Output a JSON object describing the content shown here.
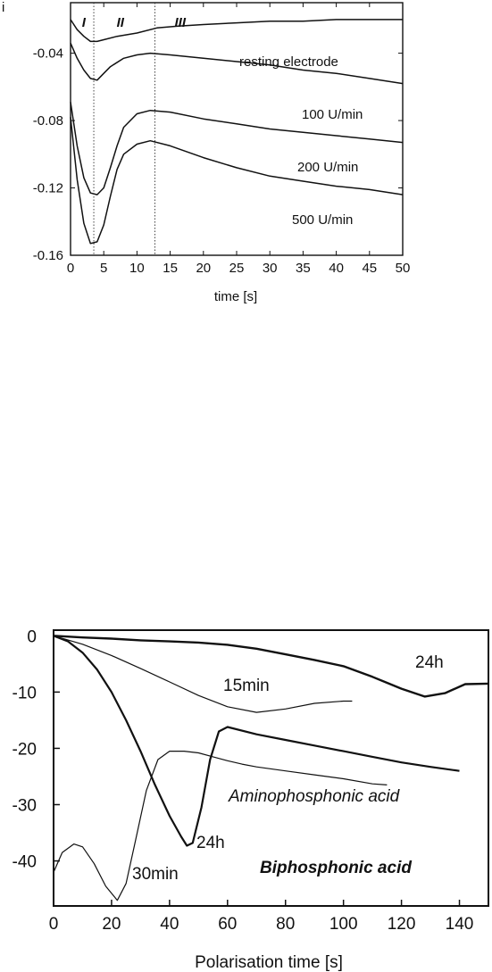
{
  "chart_data": [
    {
      "type": "line",
      "title": "",
      "ylabel": "i",
      "xlabel": "time [s]",
      "xlim": [
        0,
        50
      ],
      "ylim": [
        -0.16,
        -0.01
      ],
      "xticks": [
        "0",
        "5",
        "10",
        "15",
        "20",
        "25",
        "30",
        "35",
        "40",
        "45",
        "50"
      ],
      "yticks": [
        "-0.04",
        "-0.08",
        "-0.12",
        "-0.16"
      ],
      "regions": [
        {
          "label": "I",
          "x": 2
        },
        {
          "label": "II",
          "x": 7.5
        },
        {
          "label": "III",
          "x": 16.5
        }
      ],
      "region_boundaries": [
        3.5,
        12.7
      ],
      "series": [
        {
          "name": "resting electrode",
          "x": [
            0,
            1,
            2,
            3,
            4,
            5,
            7,
            10,
            13,
            16,
            20,
            25,
            30,
            35,
            40,
            45,
            50
          ],
          "y": [
            -0.02,
            -0.026,
            -0.03,
            -0.033,
            -0.033,
            -0.032,
            -0.03,
            -0.028,
            -0.025,
            -0.024,
            -0.023,
            -0.022,
            -0.021,
            -0.021,
            -0.02,
            -0.02,
            -0.02
          ]
        },
        {
          "name": "100 U/min",
          "x": [
            0,
            1,
            2,
            3,
            4,
            5,
            6,
            8,
            10,
            12,
            15,
            20,
            25,
            30,
            35,
            40,
            45,
            50
          ],
          "y": [
            -0.034,
            -0.043,
            -0.05,
            -0.055,
            -0.056,
            -0.052,
            -0.048,
            -0.043,
            -0.041,
            -0.04,
            -0.041,
            -0.043,
            -0.045,
            -0.047,
            -0.05,
            -0.052,
            -0.055,
            -0.058
          ]
        },
        {
          "name": "200 U/min",
          "x": [
            0,
            1,
            2,
            3,
            4,
            5,
            6,
            7,
            8,
            10,
            12,
            15,
            20,
            25,
            30,
            35,
            40,
            45,
            50
          ],
          "y": [
            -0.069,
            -0.095,
            -0.114,
            -0.123,
            -0.124,
            -0.12,
            -0.108,
            -0.095,
            -0.084,
            -0.076,
            -0.074,
            -0.075,
            -0.079,
            -0.082,
            -0.085,
            -0.087,
            -0.089,
            -0.091,
            -0.093
          ]
        },
        {
          "name": "500 U/min",
          "x": [
            0,
            1,
            2,
            3,
            4,
            5,
            6,
            7,
            8,
            10,
            12,
            15,
            20,
            25,
            30,
            35,
            40,
            45,
            50
          ],
          "y": [
            -0.078,
            -0.115,
            -0.141,
            -0.153,
            -0.152,
            -0.142,
            -0.125,
            -0.109,
            -0.1,
            -0.094,
            -0.092,
            -0.095,
            -0.102,
            -0.108,
            -0.113,
            -0.116,
            -0.119,
            -0.121,
            -0.124
          ]
        }
      ]
    },
    {
      "type": "line",
      "title": "",
      "ylabel": "",
      "xlabel": "Polarisation time [s]",
      "xlim": [
        0,
        150
      ],
      "ylim": [
        -48,
        1
      ],
      "xticks": [
        "0",
        "20",
        "40",
        "60",
        "80",
        "100",
        "120",
        "140"
      ],
      "yticks": [
        "0",
        "-10",
        "-20",
        "-30",
        "-40"
      ],
      "groups": [
        "Aminophosphonic acid",
        "Biphosphonic acid"
      ],
      "series": [
        {
          "name": "15min",
          "group": "Aminophosphonic acid",
          "x": [
            0,
            10,
            20,
            30,
            40,
            50,
            60,
            70,
            80,
            90,
            100,
            103
          ],
          "y": [
            0,
            -1.5,
            -3.5,
            -5.8,
            -8.2,
            -10.6,
            -12.6,
            -13.6,
            -13.0,
            -12.0,
            -11.6,
            -11.6
          ]
        },
        {
          "name": "24h",
          "group": "Aminophosphonic acid",
          "x": [
            0,
            10,
            20,
            30,
            40,
            50,
            60,
            70,
            80,
            90,
            100,
            110,
            120,
            128,
            135,
            142,
            150
          ],
          "y": [
            0,
            -0.3,
            -0.5,
            -0.8,
            -1.0,
            -1.2,
            -1.6,
            -2.3,
            -3.3,
            -4.3,
            -5.4,
            -7.3,
            -9.4,
            -10.8,
            -10.2,
            -8.6,
            -8.5
          ]
        },
        {
          "name": "30min",
          "group": "Biphosphonic acid",
          "x": [
            0,
            3,
            7,
            10,
            14,
            18,
            22,
            25,
            28,
            32,
            36,
            40,
            45,
            50,
            55,
            60,
            65,
            70,
            80,
            90,
            100,
            110,
            115
          ],
          "y": [
            -42,
            -38.5,
            -37,
            -37.5,
            -40.5,
            -44.5,
            -47,
            -44,
            -37,
            -27.5,
            -22,
            -20.5,
            -20.5,
            -20.8,
            -21.5,
            -22.2,
            -22.8,
            -23.3,
            -24,
            -24.7,
            -25.4,
            -26.3,
            -26.5
          ]
        },
        {
          "name": "24h",
          "group": "Biphosphonic acid",
          "x": [
            0,
            5,
            10,
            15,
            20,
            25,
            30,
            35,
            40,
            44,
            46,
            48,
            51,
            54,
            57,
            60,
            70,
            80,
            90,
            100,
            110,
            120,
            130,
            140
          ],
          "y": [
            0,
            -1,
            -3,
            -6,
            -10,
            -15,
            -20.5,
            -26.5,
            -32,
            -35.7,
            -37.3,
            -36.8,
            -30.5,
            -22,
            -17,
            -16.2,
            -17.5,
            -18.5,
            -19.5,
            -20.5,
            -21.5,
            -22.5,
            -23.3,
            -24
          ]
        }
      ]
    }
  ]
}
